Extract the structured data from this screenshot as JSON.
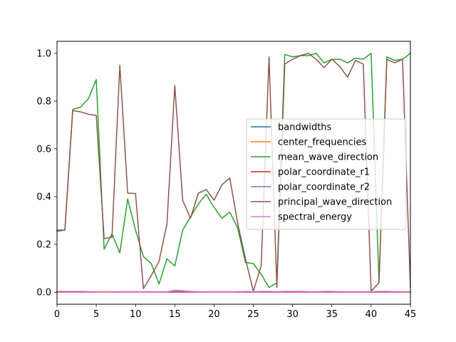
{
  "chart_data": {
    "type": "line",
    "title": "",
    "xlabel": "",
    "ylabel": "",
    "xlim": [
      0,
      45
    ],
    "ylim": [
      -0.05,
      1.05
    ],
    "x_ticks": [
      0,
      5,
      10,
      15,
      20,
      25,
      30,
      35,
      40,
      45
    ],
    "y_ticks": [
      0.0,
      0.2,
      0.4,
      0.6,
      0.8,
      1.0
    ],
    "x_tick_labels": [
      "0",
      "5",
      "10",
      "15",
      "20",
      "25",
      "30",
      "35",
      "40",
      "45"
    ],
    "y_tick_labels": [
      "0.0",
      "0.2",
      "0.4",
      "0.6",
      "0.8",
      "1.0"
    ],
    "grid": false,
    "legend_position": "center-right",
    "x": [
      0,
      1,
      2,
      3,
      4,
      5,
      6,
      7,
      8,
      9,
      10,
      11,
      12,
      13,
      14,
      15,
      16,
      17,
      18,
      19,
      20,
      21,
      22,
      23,
      24,
      25,
      26,
      27,
      28,
      29,
      30,
      31,
      32,
      33,
      34,
      35,
      36,
      37,
      38,
      39,
      40,
      41,
      42,
      43,
      44,
      45
    ],
    "series": [
      {
        "name": "bandwidths",
        "color": "#1f77b4",
        "values": [
          0.002,
          0.002,
          0.002,
          0.002,
          0.002,
          0.002,
          0.002,
          0.001,
          0.001,
          0.001,
          0.001,
          0.001,
          0.001,
          0.001,
          0.001,
          0.001,
          0.001,
          0.001,
          0.001,
          0.001,
          0.001,
          0.001,
          0.001,
          0.001,
          0.001,
          0.001,
          0.001,
          0.001,
          0.001,
          0.001,
          0.001,
          0.001,
          0.001,
          0.001,
          0.001,
          0.001,
          0.001,
          0.001,
          0.001,
          0.001,
          0.001,
          0.001,
          0.001,
          0.001,
          0.001,
          0.001
        ]
      },
      {
        "name": "center_frequencies",
        "color": "#ff7f0e",
        "values": [
          0.003,
          0.003,
          0.003,
          0.003,
          0.003,
          0.003,
          0.002,
          0.002,
          0.002,
          0.002,
          0.002,
          0.002,
          0.002,
          0.002,
          0.002,
          0.002,
          0.002,
          0.002,
          0.002,
          0.002,
          0.002,
          0.002,
          0.002,
          0.002,
          0.002,
          0.002,
          0.002,
          0.002,
          0.002,
          0.002,
          0.002,
          0.002,
          0.002,
          0.002,
          0.002,
          0.002,
          0.002,
          0.002,
          0.002,
          0.002,
          0.002,
          0.002,
          0.002,
          0.002,
          0.002,
          0.002
        ]
      },
      {
        "name": "mean_wave_direction",
        "color": "#2ca02c",
        "values": [
          0.255,
          0.26,
          0.765,
          0.775,
          0.81,
          0.89,
          0.18,
          0.245,
          0.165,
          0.39,
          0.26,
          0.15,
          0.12,
          0.035,
          0.14,
          0.11,
          0.26,
          0.315,
          0.37,
          0.41,
          0.355,
          0.31,
          0.335,
          0.27,
          0.125,
          0.12,
          0.075,
          0.02,
          0.04,
          0.995,
          0.985,
          0.99,
          0.99,
          1.0,
          0.96,
          0.975,
          0.975,
          0.96,
          0.98,
          0.975,
          1.0,
          0.04,
          0.985,
          0.97,
          0.975,
          1.0
        ]
      },
      {
        "name": "polar_coordinate_r1",
        "color": "#d62728",
        "values": [
          0.001,
          0.001,
          0.001,
          0.001,
          0.001,
          0.001,
          0.001,
          0.001,
          0.001,
          0.001,
          0.001,
          0.001,
          0.001,
          0.001,
          0.001,
          0.001,
          0.001,
          0.001,
          0.001,
          0.001,
          0.001,
          0.001,
          0.001,
          0.001,
          0.001,
          0.001,
          0.001,
          0.001,
          0.001,
          0.001,
          0.001,
          0.001,
          0.001,
          0.001,
          0.001,
          0.001,
          0.001,
          0.001,
          0.001,
          0.001,
          0.001,
          0.001,
          0.001,
          0.001,
          0.001,
          0.001
        ]
      },
      {
        "name": "polar_coordinate_r2",
        "color": "#9467bd",
        "values": [
          0.002,
          0.002,
          0.002,
          0.002,
          0.002,
          0.002,
          0.002,
          0.002,
          0.002,
          0.002,
          0.002,
          0.002,
          0.002,
          0.002,
          0.002,
          0.004,
          0.003,
          0.002,
          0.002,
          0.002,
          0.002,
          0.002,
          0.002,
          0.002,
          0.002,
          0.002,
          0.002,
          0.002,
          0.002,
          0.002,
          0.002,
          0.002,
          0.002,
          0.002,
          0.002,
          0.002,
          0.002,
          0.002,
          0.002,
          0.002,
          0.002,
          0.002,
          0.002,
          0.002,
          0.002,
          0.002
        ]
      },
      {
        "name": "principal_wave_direction",
        "color": "#8c564b",
        "values": [
          0.26,
          0.26,
          0.76,
          0.755,
          0.745,
          0.74,
          0.225,
          0.23,
          0.95,
          0.415,
          0.413,
          0.015,
          0.07,
          0.13,
          0.285,
          0.865,
          0.385,
          0.31,
          0.415,
          0.43,
          0.385,
          0.45,
          0.478,
          0.29,
          0.14,
          0.005,
          0.11,
          0.985,
          0.02,
          0.955,
          0.975,
          0.99,
          1.0,
          0.975,
          0.94,
          0.975,
          0.945,
          0.9,
          0.97,
          0.955,
          0.005,
          0.04,
          0.975,
          0.96,
          0.975,
          0.02
        ]
      },
      {
        "name": "spectral_energy",
        "color": "#e377c2",
        "values": [
          0.004,
          0.004,
          0.004,
          0.004,
          0.003,
          0.003,
          0.002,
          0.002,
          0.001,
          0.001,
          0.001,
          0.001,
          0.001,
          0.002,
          0.002,
          0.009,
          0.007,
          0.004,
          0.003,
          0.001,
          0.001,
          0.001,
          0.001,
          0.002,
          0.004,
          0.003,
          0.004,
          0.004,
          0.003,
          0.004,
          0.004,
          0.004,
          0.003,
          0.003,
          0.004,
          0.004,
          0.003,
          0.003,
          0.003,
          0.003,
          0.003,
          0.004,
          0.004,
          0.003,
          0.003,
          0.003
        ]
      }
    ]
  }
}
